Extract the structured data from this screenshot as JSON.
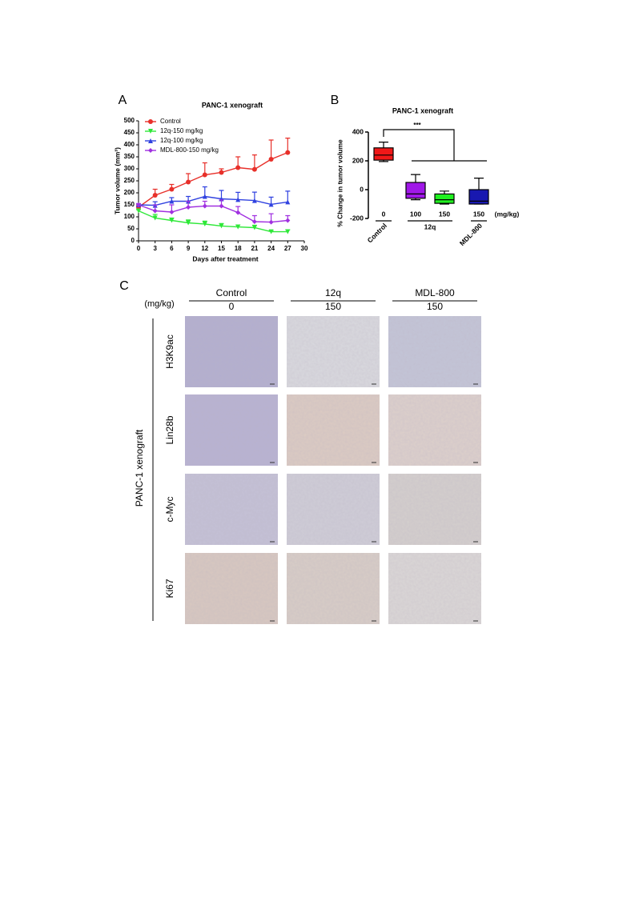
{
  "chart_data": [
    {
      "type": "line",
      "panel_label": "A",
      "title": "PANC-1 xenograft",
      "x_label": "Days after treatment",
      "y_label": "Tumor volume (mm³)",
      "x": [
        0,
        3,
        6,
        9,
        12,
        15,
        18,
        21,
        24,
        27
      ],
      "xlim": [
        0,
        30
      ],
      "xticks": [
        0,
        3,
        6,
        9,
        12,
        15,
        18,
        21,
        24,
        27,
        30
      ],
      "ylim": [
        0,
        500
      ],
      "yticks": [
        0,
        50,
        100,
        150,
        200,
        250,
        300,
        350,
        400,
        450,
        500
      ],
      "legend": "top-left",
      "series": [
        {
          "name": "Control",
          "color": "#e8302a",
          "marker": "circle",
          "values": [
            140,
            190,
            215,
            245,
            275,
            285,
            305,
            298,
            340,
            368
          ],
          "errors": [
            5,
            25,
            20,
            35,
            50,
            15,
            45,
            60,
            80,
            60
          ]
        },
        {
          "name": "12q-150 mg/kg",
          "color": "#2ee838",
          "marker": "triangle-down",
          "values": [
            125,
            95,
            85,
            75,
            70,
            62,
            58,
            55,
            38,
            38
          ],
          "errors": [
            5,
            15,
            10,
            12,
            12,
            10,
            8,
            10,
            5,
            8
          ]
        },
        {
          "name": "12q-100 mg/kg",
          "color": "#3042e0",
          "marker": "triangle",
          "values": [
            150,
            148,
            165,
            165,
            185,
            175,
            172,
            168,
            152,
            162
          ],
          "errors": [
            5,
            15,
            15,
            20,
            40,
            35,
            30,
            35,
            30,
            45
          ]
        },
        {
          "name": "MDL-800-150 mg/kg",
          "color": "#a030e0",
          "marker": "diamond",
          "values": [
            150,
            125,
            120,
            140,
            145,
            145,
            118,
            80,
            78,
            85
          ],
          "errors": [
            5,
            25,
            30,
            25,
            20,
            25,
            25,
            25,
            35,
            20
          ]
        }
      ]
    },
    {
      "type": "box",
      "panel_label": "B",
      "title": "PANC-1 xenograft",
      "y_label": "% Change in tumor volume",
      "unit_label": "(mg/kg)",
      "annotation": "***",
      "ylim": [
        -200,
        400
      ],
      "yticks": [
        -200,
        0,
        200,
        400
      ],
      "groups": [
        {
          "name": "Control",
          "boxes": [
            {
              "dose": "0",
              "color": "#f01818",
              "min": 195,
              "q1": 205,
              "median": 240,
              "q3": 290,
              "max": 330
            }
          ]
        },
        {
          "name": "12q",
          "boxes": [
            {
              "dose": "100",
              "color": "#a018e8",
              "min": -70,
              "q1": -60,
              "median": -30,
              "q3": 50,
              "max": 105
            },
            {
              "dose": "150",
              "color": "#20f020",
              "min": -100,
              "q1": -95,
              "median": -70,
              "q3": -30,
              "max": -10
            }
          ]
        },
        {
          "name": "MDL-800",
          "boxes": [
            {
              "dose": "150",
              "color": "#1818b0",
              "min": -100,
              "q1": -100,
              "median": -80,
              "q3": 0,
              "max": 80
            }
          ]
        }
      ]
    }
  ],
  "panel_c": {
    "label": "C",
    "unit_label": "(mg/kg)",
    "side_label": "PANC-1 xenograft",
    "columns": [
      {
        "name": "Control",
        "dose": "0"
      },
      {
        "name": "12q",
        "dose": "150"
      },
      {
        "name": "MDL-800",
        "dose": "150"
      }
    ],
    "rows": [
      "H3K9ac",
      "Lin28b",
      "c-Myc",
      "Ki67"
    ]
  }
}
